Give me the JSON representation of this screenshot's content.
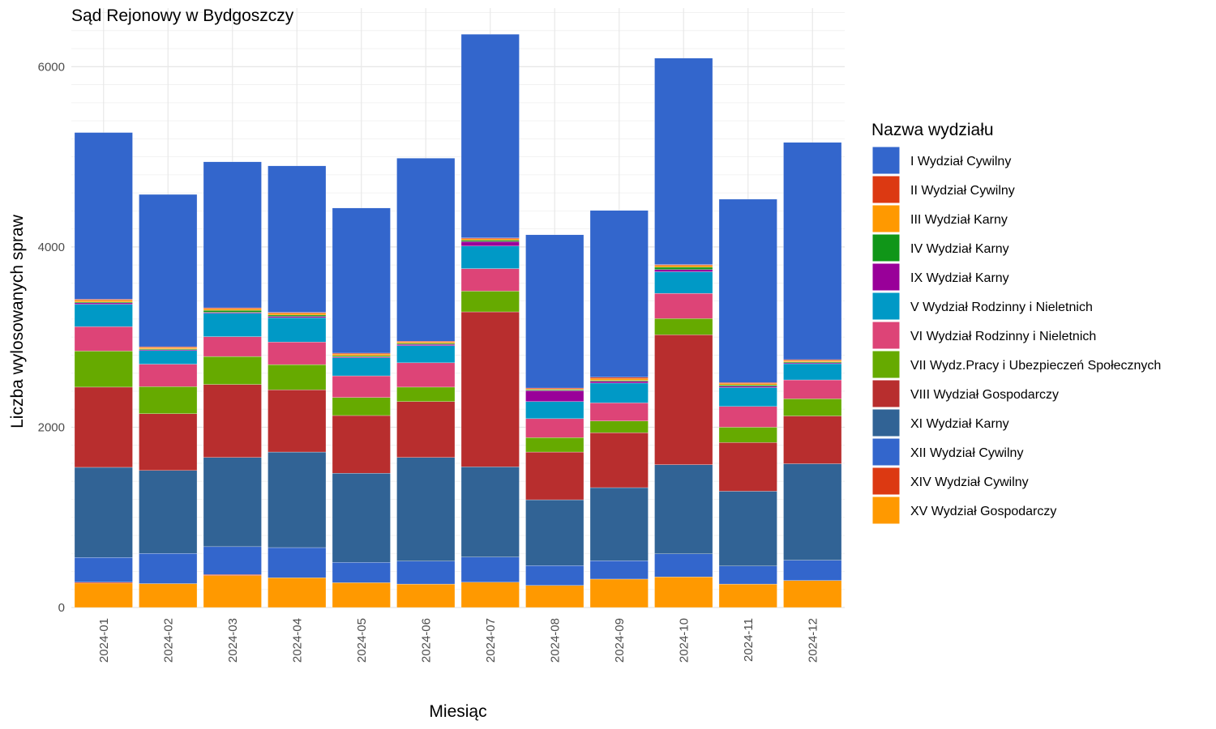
{
  "chart_data": {
    "type": "bar",
    "stacked": true,
    "title": "Sąd Rejonowy w Bydgoszczy",
    "xlabel": "Miesiąc",
    "ylabel": "Liczba wylosowanych spraw",
    "ylim": [
      0,
      6650
    ],
    "yticks": [
      0,
      2000,
      4000,
      6000
    ],
    "grid": true,
    "legend_position": "right",
    "legend_title": "Nazwa wydziału",
    "categories": [
      "2024-01",
      "2024-02",
      "2024-03",
      "2024-04",
      "2024-05",
      "2024-06",
      "2024-07",
      "2024-08",
      "2024-09",
      "2024-10",
      "2024-11",
      "2024-12"
    ],
    "series": [
      {
        "name": "XV Wydział Gospodarczy",
        "color": "#FF9900",
        "values": [
          270,
          265,
          355,
          330,
          275,
          260,
          280,
          245,
          315,
          340,
          260,
          300
        ]
      },
      {
        "name": "XIV Wydział Cywilny",
        "color": "#DC3912",
        "values": [
          10,
          0,
          10,
          0,
          0,
          0,
          0,
          0,
          0,
          0,
          0,
          0
        ]
      },
      {
        "name": "XII Wydział Cywilny",
        "color": "#3366CC",
        "values": [
          275,
          335,
          310,
          335,
          225,
          255,
          280,
          220,
          205,
          255,
          200,
          225
        ]
      },
      {
        "name": "XI Wydział Karny",
        "color": "#316395",
        "values": [
          1000,
          920,
          990,
          1060,
          990,
          1150,
          1000,
          730,
          810,
          990,
          830,
          1070
        ]
      },
      {
        "name": "VIII Wydział Gospodarczy",
        "color": "#B82E2E",
        "values": [
          890,
          630,
          810,
          690,
          640,
          620,
          1720,
          530,
          610,
          1440,
          540,
          530
        ]
      },
      {
        "name": "VII Wydz.Pracy i Ubezpieczeń Społecznych",
        "color": "#66AA00",
        "values": [
          400,
          300,
          310,
          280,
          200,
          160,
          230,
          160,
          130,
          180,
          170,
          190
        ]
      },
      {
        "name": "VI Wydział Rodzinny i Nieletnich",
        "color": "#DD4477",
        "values": [
          270,
          250,
          220,
          250,
          240,
          270,
          250,
          210,
          200,
          280,
          230,
          210
        ]
      },
      {
        "name": "V Wydział Rodzinny i Nieletnich",
        "color": "#0099C6",
        "values": [
          250,
          150,
          260,
          270,
          200,
          190,
          250,
          190,
          220,
          240,
          210,
          180
        ]
      },
      {
        "name": "IX Wydział Karny",
        "color": "#990099",
        "values": [
          15,
          10,
          10,
          15,
          10,
          15,
          50,
          120,
          20,
          25,
          15,
          10
        ]
      },
      {
        "name": "IV Wydział Karny",
        "color": "#109618",
        "values": [
          10,
          8,
          20,
          15,
          12,
          10,
          15,
          10,
          10,
          25,
          15,
          10
        ]
      },
      {
        "name": "III Wydział Karny",
        "color": "#FF9900",
        "values": [
          20,
          15,
          20,
          20,
          20,
          15,
          15,
          10,
          20,
          20,
          15,
          15
        ]
      },
      {
        "name": "II Wydział Cywilny",
        "color": "#DC3912",
        "values": [
          10,
          10,
          10,
          10,
          10,
          10,
          10,
          10,
          15,
          10,
          10,
          10
        ]
      },
      {
        "name": "I Wydział Cywilny",
        "color": "#3366CC",
        "values": [
          1850,
          1690,
          1620,
          1625,
          1610,
          2030,
          2260,
          1700,
          1850,
          2290,
          2035,
          2410
        ]
      }
    ],
    "legend_order": [
      "I Wydział Cywilny",
      "II Wydział Cywilny",
      "III Wydział Karny",
      "IV Wydział Karny",
      "IX Wydział Karny",
      "V Wydział Rodzinny i Nieletnich",
      "VI Wydział Rodzinny i Nieletnich",
      "VII Wydz.Pracy i Ubezpieczeń Społecznych",
      "VIII Wydział Gospodarczy",
      "XI Wydział Karny",
      "XII Wydział Cywilny",
      "XIV Wydział Cywilny",
      "XV Wydział Gospodarczy"
    ]
  }
}
